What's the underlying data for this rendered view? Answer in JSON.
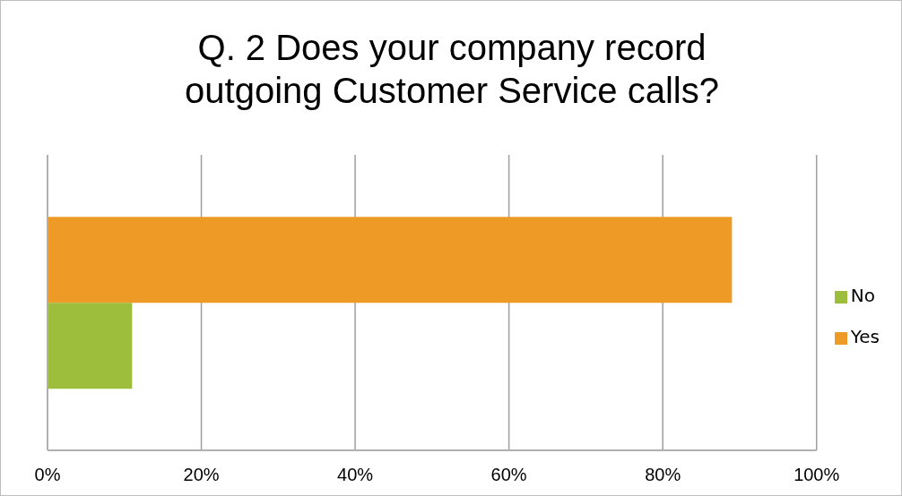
{
  "chart_data": {
    "type": "bar",
    "orientation": "horizontal",
    "title": "Q. 2 Does your company record outgoing Customer Service calls?",
    "categories": [
      null
    ],
    "series": [
      {
        "name": "Yes",
        "color": "#ed9a26",
        "values": [
          89
        ]
      },
      {
        "name": "No",
        "color": "#9dbe3d",
        "values": [
          11
        ]
      }
    ],
    "xlim": [
      0,
      100
    ],
    "xticks": [
      {
        "value": 0,
        "label": "0%"
      },
      {
        "value": 20,
        "label": "20%"
      },
      {
        "value": 40,
        "label": "40%"
      },
      {
        "value": 60,
        "label": "60%"
      },
      {
        "value": 80,
        "label": "80%"
      },
      {
        "value": 100,
        "label": "100%"
      }
    ],
    "grid": "x",
    "legend": "right"
  }
}
